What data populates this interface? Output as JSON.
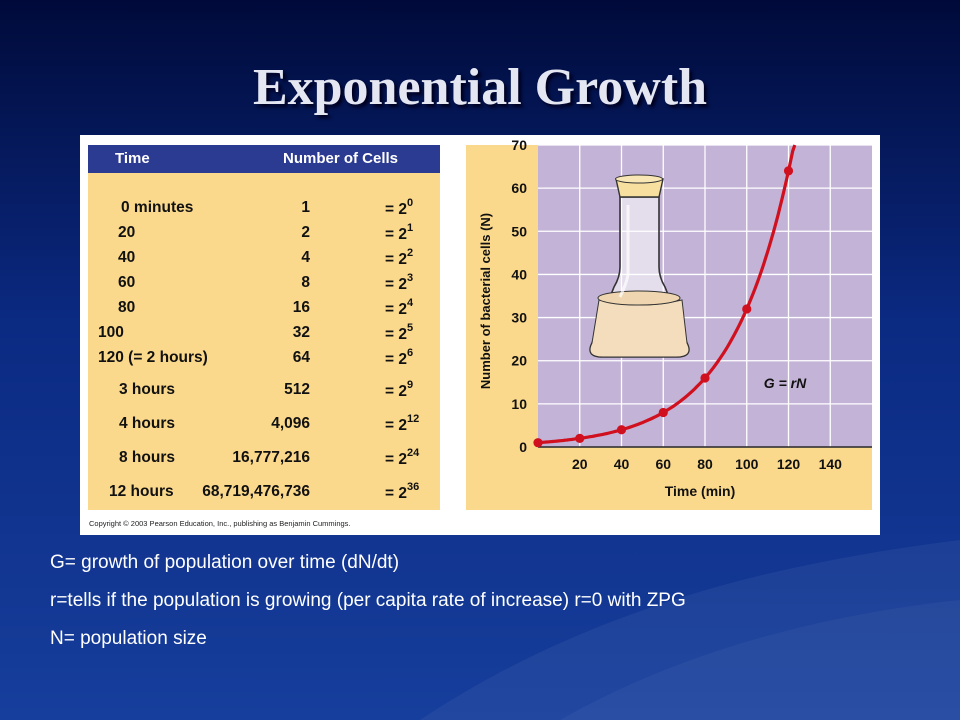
{
  "slide": {
    "title": "Exponential Growth",
    "copyright": "Copyright © 2003 Pearson Education, Inc., publishing as Benjamin Cummings."
  },
  "table": {
    "headers": [
      "Time",
      "Number of Cells"
    ],
    "rows": [
      {
        "time": "0 minutes",
        "cells": "1",
        "power": "= 2",
        "exp": "0"
      },
      {
        "time": "20",
        "cells": "2",
        "power": "= 2",
        "exp": "1"
      },
      {
        "time": "40",
        "cells": "4",
        "power": "= 2",
        "exp": "2"
      },
      {
        "time": "60",
        "cells": "8",
        "power": "= 2",
        "exp": "3"
      },
      {
        "time": "80",
        "cells": "16",
        "power": "= 2",
        "exp": "4"
      },
      {
        "time": "100",
        "cells": "32",
        "power": "= 2",
        "exp": "5"
      },
      {
        "time": "120 (= 2 hours)",
        "cells": "64",
        "power": "= 2",
        "exp": "6"
      },
      {
        "time": "3 hours",
        "cells": "512",
        "power": "= 2",
        "exp": "9"
      },
      {
        "time": "4 hours",
        "cells": "4,096",
        "power": "= 2",
        "exp": "12"
      },
      {
        "time": "8 hours",
        "cells": "16,777,216",
        "power": "= 2",
        "exp": "24"
      },
      {
        "time": "12 hours",
        "cells": "68,719,476,736",
        "power": "= 2",
        "exp": "36"
      }
    ]
  },
  "chart_data": {
    "type": "line",
    "title": "",
    "xlabel": "Time (min)",
    "ylabel": "Number of bacterial cells (N)",
    "xlim": [
      0,
      160
    ],
    "ylim": [
      0,
      70
    ],
    "x_ticks": [
      "20",
      "40",
      "60",
      "80",
      "100",
      "120",
      "140"
    ],
    "y_ticks": [
      "0",
      "10",
      "20",
      "30",
      "40",
      "50",
      "60",
      "70"
    ],
    "grid": true,
    "annotation": "G = rN",
    "series": [
      {
        "x": [
          0,
          20,
          40,
          60,
          80,
          100,
          120
        ],
        "y": [
          1,
          2,
          4,
          8,
          16,
          32,
          64
        ]
      }
    ],
    "colors": {
      "plot_bg": "#c3b3d6",
      "frame_bg": "#fbd98c",
      "line": "#d0101e",
      "grid": "#ffffff"
    }
  },
  "notes": [
    "G= growth of population over time (dN/dt)",
    "r=tells if the population is growing (per capita rate of increase) r=0 with ZPG",
    "N= population size"
  ]
}
